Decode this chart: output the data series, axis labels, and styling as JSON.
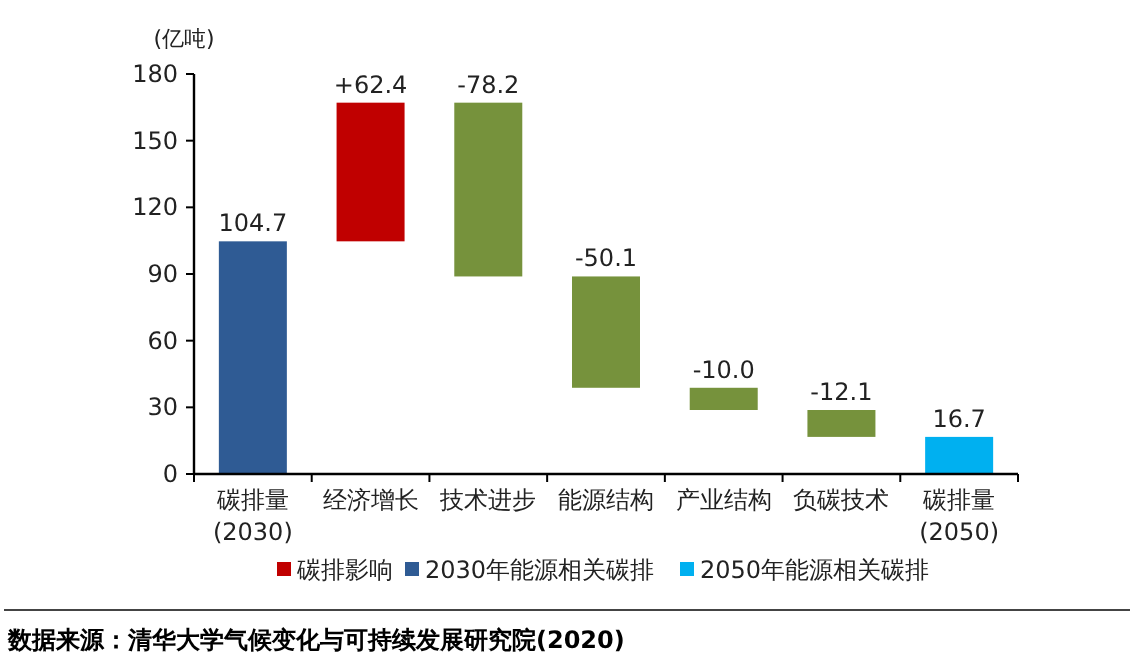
{
  "chart_data": {
    "type": "bar",
    "ylabel": "(亿吨)",
    "categories": [
      "碳排量\n(2030)",
      "经济增长",
      "技术进步",
      "能源结构",
      "产业结构",
      "负碳技术",
      "碳排量\n(2050)"
    ],
    "series": [
      {
        "name": "碳排影响",
        "color": "#c00000",
        "values": [
          null,
          62.4,
          null,
          null,
          null,
          null,
          null
        ],
        "base": [
          null,
          104.7,
          null,
          null,
          null,
          null,
          null
        ],
        "value_labels": [
          null,
          "+62.4",
          null,
          null,
          null,
          null,
          null
        ]
      },
      {
        "name": "2030年能源相关碳排",
        "color": "#2f5b94",
        "values": [
          104.7,
          null,
          null,
          null,
          null,
          null,
          null
        ],
        "base": [
          0,
          null,
          null,
          null,
          null,
          null,
          null
        ],
        "value_labels": [
          "104.7",
          null,
          null,
          null,
          null,
          null,
          null
        ]
      },
      {
        "name": "2050年能源相关碳排",
        "color": "#00b0f0",
        "values": [
          null,
          null,
          null,
          null,
          null,
          null,
          16.7
        ],
        "base": [
          null,
          null,
          null,
          null,
          null,
          null,
          0
        ],
        "value_labels": [
          null,
          null,
          null,
          null,
          null,
          null,
          "16.7"
        ]
      },
      {
        "color": "#76923c",
        "values": [
          null,
          null,
          -78.2,
          -50.1,
          -10.0,
          -12.1,
          null
        ],
        "base": [
          null,
          null,
          167.1,
          88.9,
          38.8,
          28.8,
          null
        ],
        "value_labels": [
          null,
          null,
          "-78.2",
          "-50.1",
          "-10.0",
          "-12.1",
          null
        ]
      }
    ],
    "ylim": [
      0,
      180
    ],
    "yticks": [
      0,
      30,
      60,
      90,
      120,
      150,
      180
    ],
    "legend": "bottom",
    "annotations": [
      "数据来源：清华大学气候变化与可持续发展研究院(2020)"
    ]
  }
}
